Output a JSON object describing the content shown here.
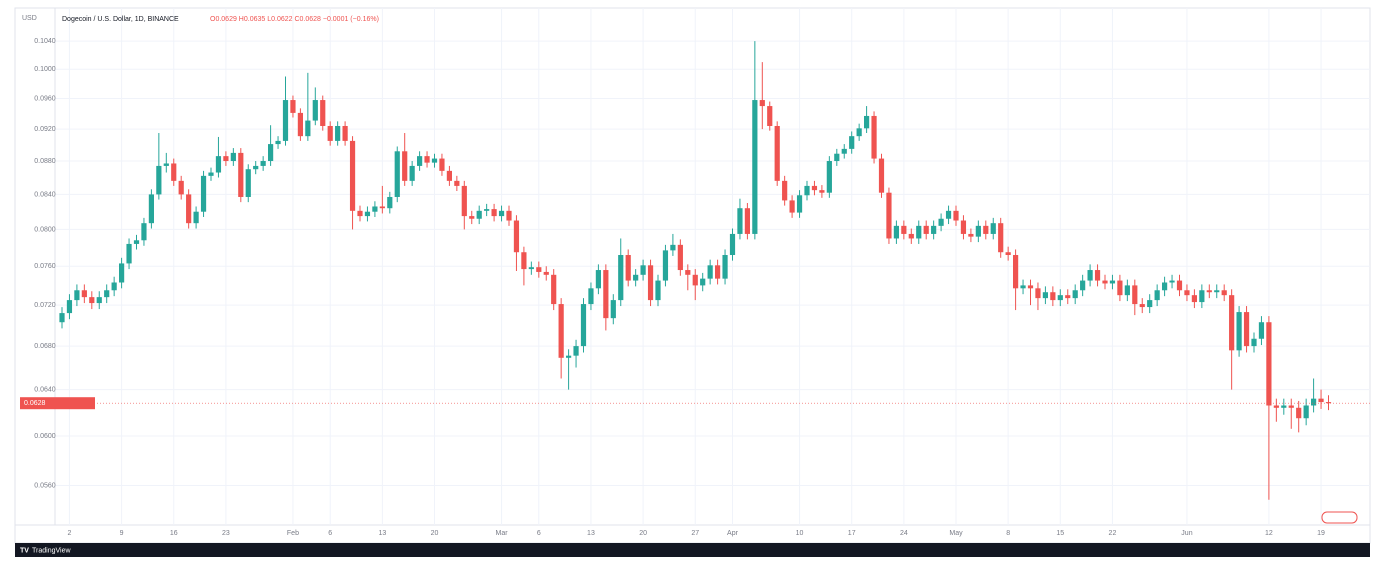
{
  "chart_data": {
    "type": "candlestick",
    "currency": "USD",
    "title": "Dogecoin / U.S. Dollar, 1D, BINANCE",
    "legend_values": "O0.0629 H0.0635 L0.0622 C0.0628 −0.0001 (−0.16%)",
    "brand": "TradingView",
    "log": true,
    "grid": true,
    "up_color": "#26a69a",
    "down_color": "#ef5350",
    "ylim": [
      0.053,
      0.108
    ],
    "yticks": [
      {
        "value": 0.104,
        "label": "0.1040"
      },
      {
        "value": 0.1,
        "label": "0.1000"
      },
      {
        "value": 0.096,
        "label": "0.0960"
      },
      {
        "value": 0.092,
        "label": "0.0920"
      },
      {
        "value": 0.088,
        "label": "0.0880"
      },
      {
        "value": 0.084,
        "label": "0.0840"
      },
      {
        "value": 0.08,
        "label": "0.0800"
      },
      {
        "value": 0.076,
        "label": "0.0760"
      },
      {
        "value": 0.072,
        "label": "0.0720"
      },
      {
        "value": 0.068,
        "label": "0.0680"
      },
      {
        "value": 0.064,
        "label": "0.0640"
      },
      {
        "value": 0.06,
        "label": "0.0600"
      },
      {
        "value": 0.056,
        "label": "0.0560"
      }
    ],
    "categories": [
      null,
      "2",
      null,
      null,
      null,
      null,
      null,
      null,
      "9",
      null,
      null,
      null,
      null,
      null,
      null,
      "16",
      null,
      null,
      null,
      null,
      null,
      null,
      "23",
      null,
      null,
      null,
      null,
      null,
      null,
      null,
      null,
      "Feb",
      null,
      null,
      null,
      null,
      "6",
      null,
      null,
      null,
      null,
      null,
      null,
      "13",
      null,
      null,
      null,
      null,
      null,
      null,
      "20",
      null,
      null,
      null,
      null,
      null,
      null,
      null,
      null,
      "Mar",
      null,
      null,
      null,
      null,
      "6",
      null,
      null,
      null,
      null,
      null,
      null,
      "13",
      null,
      null,
      null,
      null,
      null,
      null,
      "20",
      null,
      null,
      null,
      null,
      null,
      null,
      "27",
      null,
      null,
      null,
      null,
      "Apr",
      null,
      null,
      null,
      null,
      null,
      null,
      null,
      null,
      "10",
      null,
      null,
      null,
      null,
      null,
      null,
      "17",
      null,
      null,
      null,
      null,
      null,
      null,
      "24",
      null,
      null,
      null,
      null,
      null,
      null,
      "May",
      null,
      null,
      null,
      null,
      null,
      null,
      "8",
      null,
      null,
      null,
      null,
      null,
      null,
      "15",
      null,
      null,
      null,
      null,
      null,
      null,
      "22",
      null,
      null,
      null,
      null,
      null,
      null,
      null,
      null,
      null,
      "Jun",
      null,
      null,
      null,
      null,
      null,
      null,
      null,
      null,
      null,
      null,
      "12",
      null,
      null,
      null,
      null,
      null,
      null,
      "19",
      null
    ],
    "open": [
      0.0703,
      0.0712,
      0.0725,
      0.0735,
      0.0728,
      0.0722,
      0.0728,
      0.0735,
      0.0743,
      0.0763,
      0.0784,
      0.0788,
      0.0807,
      0.084,
      0.0874,
      0.0877,
      0.0856,
      0.084,
      0.0807,
      0.082,
      0.0862,
      0.0866,
      0.0886,
      0.088,
      0.089,
      0.0837,
      0.087,
      0.0874,
      0.088,
      0.0901,
      0.0905,
      0.0958,
      0.0941,
      0.0911,
      0.0931,
      0.0958,
      0.0924,
      0.0905,
      0.0924,
      0.0905,
      0.0821,
      0.0815,
      0.082,
      0.0826,
      0.0824,
      0.0837,
      0.0892,
      0.0856,
      0.0874,
      0.0886,
      0.0878,
      0.0883,
      0.0868,
      0.0856,
      0.085,
      0.0815,
      0.0812,
      0.0821,
      0.0823,
      0.0815,
      0.0821,
      0.081,
      0.0775,
      0.0757,
      0.0759,
      0.0754,
      0.0751,
      0.0721,
      0.0669,
      0.0671,
      0.068,
      0.0721,
      0.0737,
      0.0756,
      0.0707,
      0.0725,
      0.0772,
      0.0745,
      0.0751,
      0.0761,
      0.0725,
      0.0745,
      0.0777,
      0.0783,
      0.0756,
      0.0751,
      0.074,
      0.0747,
      0.0761,
      0.0747,
      0.0772,
      0.0795,
      0.0824,
      0.0795,
      0.0958,
      0.095,
      0.0924,
      0.0856,
      0.0833,
      0.0819,
      0.0839,
      0.085,
      0.0845,
      0.0842,
      0.088,
      0.0889,
      0.0895,
      0.0911,
      0.0921,
      0.0937,
      0.0883,
      0.0842,
      0.079,
      0.0804,
      0.0795,
      0.079,
      0.0804,
      0.0795,
      0.0804,
      0.0812,
      0.0821,
      0.081,
      0.0795,
      0.0792,
      0.0804,
      0.0795,
      0.0807,
      0.0775,
      0.0772,
      0.0737,
      0.074,
      0.0737,
      0.0727,
      0.0733,
      0.0725,
      0.073,
      0.0727,
      0.0735,
      0.0745,
      0.0756,
      0.0745,
      0.0742,
      0.0745,
      0.073,
      0.074,
      0.0721,
      0.0718,
      0.0725,
      0.0735,
      0.0743,
      0.0745,
      0.0735,
      0.073,
      0.0723,
      0.0735,
      0.0733,
      0.0735,
      0.073,
      0.0676,
      0.0713,
      0.068,
      0.0687,
      0.0703,
      0.0626,
      0.0624,
      0.0626,
      0.0624,
      0.0615,
      0.0626,
      0.0632,
      0.0629
    ],
    "high": [
      0.0718,
      0.0731,
      0.0741,
      0.0741,
      0.0734,
      0.0734,
      0.0741,
      0.0749,
      0.0769,
      0.079,
      0.0794,
      0.0813,
      0.0846,
      0.0915,
      0.089,
      0.0883,
      0.0862,
      0.0846,
      0.0826,
      0.0868,
      0.0872,
      0.091,
      0.0892,
      0.0896,
      0.0896,
      0.0876,
      0.088,
      0.0886,
      0.0925,
      0.0911,
      0.099,
      0.0964,
      0.0947,
      0.0995,
      0.0975,
      0.0964,
      0.093,
      0.093,
      0.093,
      0.0911,
      0.0827,
      0.0826,
      0.0832,
      0.085,
      0.0843,
      0.0898,
      0.0915,
      0.088,
      0.0892,
      0.0892,
      0.0889,
      0.0889,
      0.0874,
      0.0862,
      0.0856,
      0.0821,
      0.0827,
      0.0829,
      0.0829,
      0.0827,
      0.0827,
      0.0816,
      0.0781,
      0.0765,
      0.0765,
      0.076,
      0.0757,
      0.0727,
      0.0677,
      0.0686,
      0.0727,
      0.0743,
      0.0762,
      0.0762,
      0.0731,
      0.079,
      0.0778,
      0.0757,
      0.0767,
      0.0767,
      0.0751,
      0.0783,
      0.0795,
      0.0789,
      0.0762,
      0.0757,
      0.0753,
      0.0767,
      0.0767,
      0.0778,
      0.0801,
      0.0835,
      0.083,
      0.104,
      0.101,
      0.0956,
      0.093,
      0.0862,
      0.0839,
      0.0845,
      0.0856,
      0.0856,
      0.0851,
      0.0886,
      0.0895,
      0.0901,
      0.0917,
      0.0927,
      0.095,
      0.0943,
      0.0889,
      0.0848,
      0.081,
      0.081,
      0.0801,
      0.081,
      0.081,
      0.081,
      0.0818,
      0.0827,
      0.0827,
      0.0816,
      0.0801,
      0.081,
      0.081,
      0.0813,
      0.0813,
      0.0781,
      0.0778,
      0.0746,
      0.0746,
      0.0743,
      0.0739,
      0.0739,
      0.0736,
      0.0736,
      0.0741,
      0.0751,
      0.0762,
      0.0762,
      0.0751,
      0.0751,
      0.0751,
      0.0746,
      0.0746,
      0.0727,
      0.0731,
      0.0741,
      0.0749,
      0.0751,
      0.0751,
      0.0741,
      0.0736,
      0.0741,
      0.0741,
      0.0741,
      0.0741,
      0.0736,
      0.0719,
      0.0719,
      0.0693,
      0.0709,
      0.0709,
      0.0632,
      0.0632,
      0.0632,
      0.063,
      0.0632,
      0.065,
      0.064,
      0.0635
    ],
    "low": [
      0.0697,
      0.0706,
      0.0719,
      0.0722,
      0.0716,
      0.0716,
      0.0722,
      0.0729,
      0.0737,
      0.0757,
      0.0778,
      0.0782,
      0.0801,
      0.0834,
      0.0866,
      0.085,
      0.0834,
      0.0801,
      0.0801,
      0.0814,
      0.0856,
      0.086,
      0.0874,
      0.0874,
      0.0831,
      0.0831,
      0.0864,
      0.0868,
      0.0874,
      0.0895,
      0.0899,
      0.0935,
      0.0905,
      0.0905,
      0.0925,
      0.0918,
      0.0899,
      0.0899,
      0.0899,
      0.08,
      0.0809,
      0.0809,
      0.0814,
      0.0818,
      0.0818,
      0.0831,
      0.085,
      0.085,
      0.0868,
      0.0872,
      0.0872,
      0.0862,
      0.085,
      0.0844,
      0.08,
      0.0806,
      0.0806,
      0.0815,
      0.0809,
      0.0809,
      0.0804,
      0.0755,
      0.074,
      0.0751,
      0.0748,
      0.0745,
      0.0715,
      0.065,
      0.064,
      0.066,
      0.0674,
      0.0715,
      0.0731,
      0.0695,
      0.0701,
      0.0719,
      0.0739,
      0.0739,
      0.0745,
      0.0719,
      0.0719,
      0.0739,
      0.0771,
      0.075,
      0.0735,
      0.0725,
      0.0734,
      0.0741,
      0.0741,
      0.0741,
      0.0766,
      0.0789,
      0.0789,
      0.0789,
      0.092,
      0.0918,
      0.085,
      0.0827,
      0.0813,
      0.0813,
      0.0833,
      0.0839,
      0.0836,
      0.0836,
      0.0874,
      0.0883,
      0.0889,
      0.0905,
      0.0915,
      0.0877,
      0.0836,
      0.0784,
      0.0784,
      0.0789,
      0.0784,
      0.0784,
      0.0789,
      0.0789,
      0.0798,
      0.0806,
      0.0804,
      0.0789,
      0.0786,
      0.0786,
      0.0789,
      0.0789,
      0.0769,
      0.0766,
      0.0715,
      0.0731,
      0.072,
      0.0715,
      0.0721,
      0.0719,
      0.0719,
      0.0721,
      0.0721,
      0.0729,
      0.0739,
      0.0739,
      0.0736,
      0.0736,
      0.0724,
      0.0724,
      0.071,
      0.0712,
      0.0712,
      0.0719,
      0.0729,
      0.0737,
      0.0729,
      0.0724,
      0.0717,
      0.0717,
      0.0727,
      0.0727,
      0.0724,
      0.064,
      0.067,
      0.0674,
      0.0674,
      0.0681,
      0.0549,
      0.0612,
      0.0618,
      0.0606,
      0.0603,
      0.0609,
      0.062,
      0.0623,
      0.0622
    ],
    "close": [
      0.0712,
      0.0725,
      0.0735,
      0.0728,
      0.0722,
      0.0728,
      0.0735,
      0.0743,
      0.0763,
      0.0784,
      0.0788,
      0.0807,
      0.084,
      0.0874,
      0.0877,
      0.0856,
      0.084,
      0.0807,
      0.082,
      0.0862,
      0.0866,
      0.0886,
      0.088,
      0.089,
      0.0837,
      0.087,
      0.0874,
      0.088,
      0.0901,
      0.0905,
      0.0958,
      0.0941,
      0.0911,
      0.0931,
      0.0958,
      0.0924,
      0.0905,
      0.0924,
      0.0905,
      0.0821,
      0.0815,
      0.082,
      0.0826,
      0.0824,
      0.0837,
      0.0892,
      0.0856,
      0.0874,
      0.0886,
      0.0878,
      0.0883,
      0.0868,
      0.0856,
      0.085,
      0.0815,
      0.0812,
      0.0821,
      0.0823,
      0.0815,
      0.0821,
      0.081,
      0.0775,
      0.0757,
      0.0759,
      0.0754,
      0.0751,
      0.0721,
      0.0669,
      0.0671,
      0.068,
      0.0721,
      0.0737,
      0.0756,
      0.0707,
      0.0725,
      0.0772,
      0.0745,
      0.0751,
      0.0761,
      0.0725,
      0.0745,
      0.0777,
      0.0783,
      0.0756,
      0.0751,
      0.074,
      0.0747,
      0.0761,
      0.0747,
      0.0772,
      0.0795,
      0.0824,
      0.0795,
      0.0958,
      0.095,
      0.0924,
      0.0856,
      0.0833,
      0.0819,
      0.0839,
      0.085,
      0.0845,
      0.0842,
      0.088,
      0.0889,
      0.0895,
      0.0911,
      0.0921,
      0.0937,
      0.0883,
      0.0842,
      0.079,
      0.0804,
      0.0795,
      0.079,
      0.0804,
      0.0795,
      0.0804,
      0.0812,
      0.0821,
      0.081,
      0.0795,
      0.0792,
      0.0804,
      0.0795,
      0.0807,
      0.0775,
      0.0772,
      0.0737,
      0.074,
      0.0737,
      0.0727,
      0.0733,
      0.0725,
      0.073,
      0.0727,
      0.0735,
      0.0745,
      0.0756,
      0.0745,
      0.0742,
      0.0745,
      0.073,
      0.074,
      0.0721,
      0.0718,
      0.0725,
      0.0735,
      0.0743,
      0.0745,
      0.0735,
      0.073,
      0.0723,
      0.0735,
      0.0733,
      0.0735,
      0.073,
      0.0676,
      0.0713,
      0.068,
      0.0687,
      0.0703,
      0.0626,
      0.0624,
      0.0626,
      0.0624,
      0.0615,
      0.0626,
      0.0632,
      0.0629,
      0.0628
    ]
  }
}
